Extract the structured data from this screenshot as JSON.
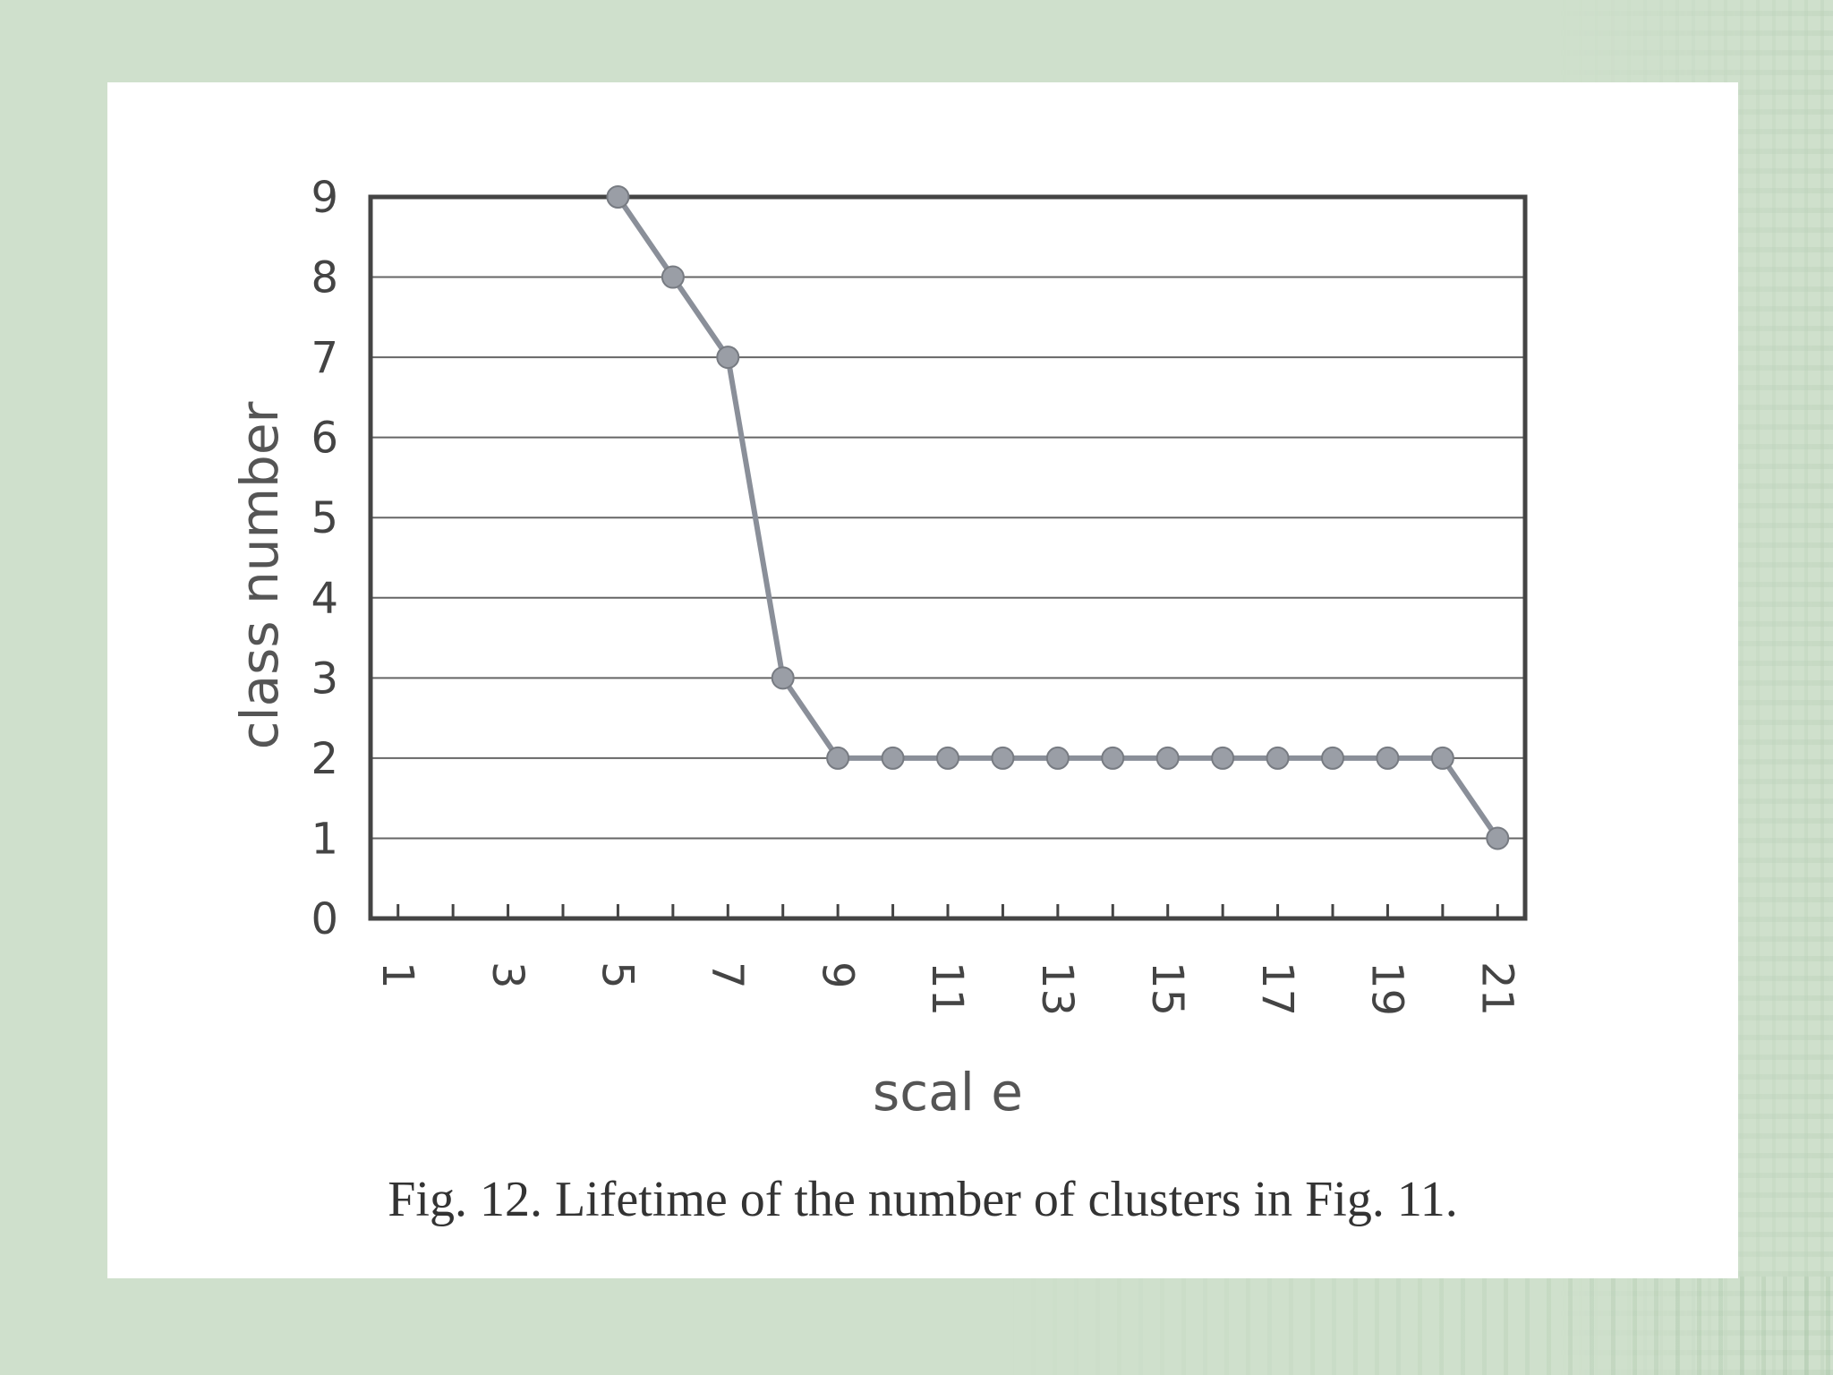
{
  "caption": "Fig. 12. Lifetime of the number of clusters in Fig. 11.",
  "chart_data": {
    "type": "line",
    "xlabel": "scal e",
    "ylabel": "class number",
    "x_tick_labels": [
      "1",
      "3",
      "5",
      "7",
      "9",
      "11",
      "13",
      "15",
      "17",
      "19",
      "21"
    ],
    "y_tick_labels": [
      "0",
      "1",
      "2",
      "3",
      "4",
      "5",
      "6",
      "7",
      "8",
      "9"
    ],
    "xlim": [
      0.5,
      21.5
    ],
    "ylim": [
      0,
      9
    ],
    "grid": true,
    "series": [
      {
        "x": [
          5,
          6,
          7,
          8,
          9,
          10,
          11,
          12,
          13,
          14,
          15,
          16,
          17,
          18,
          19,
          20,
          21
        ],
        "values": [
          9,
          8,
          7,
          3,
          2,
          2,
          2,
          2,
          2,
          2,
          2,
          2,
          2,
          2,
          2,
          2,
          1
        ]
      }
    ],
    "colors": {
      "line": "#8a8f99",
      "marker": "#9a9ea6",
      "grid": "#666666",
      "axis": "#444444"
    }
  }
}
